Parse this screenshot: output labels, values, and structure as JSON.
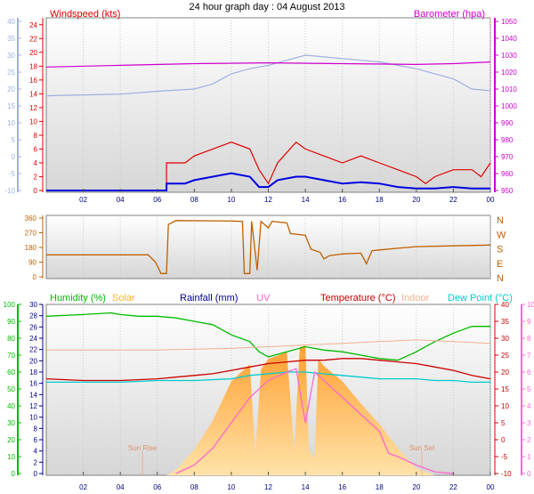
{
  "title": "24 hour graph day : 04 August 2013",
  "colors": {
    "wind_avg": "#0000e0",
    "wind_gust": "#e00000",
    "barometer": "#cc00cc",
    "temp_axis": "#a0b0e0",
    "wind_axis": "#e00000",
    "dir": "#c06000",
    "humidity": "#00bb00",
    "solar": "#ffb030",
    "rain": "#000090",
    "uv": "#ff66cc",
    "temperature": "#cc0000",
    "indoor": "#f0b090",
    "dewpoint": "#00cccc"
  },
  "chart_data": [
    {
      "type": "line",
      "panel": "wind",
      "x_ticks": [
        "02",
        "04",
        "06",
        "08",
        "10",
        "12",
        "14",
        "16",
        "18",
        "20",
        "22",
        "00"
      ],
      "left_outer_ticks": [
        "40",
        "35",
        "30",
        "25",
        "20",
        "15",
        "10",
        "5",
        "0",
        "-5",
        "-10"
      ],
      "left_inner_ticks": [
        "24",
        "22",
        "20",
        "18",
        "16",
        "14",
        "12",
        "10",
        "8",
        "6",
        "4",
        "2",
        "0"
      ],
      "right_ticks": [
        "1050",
        "1040",
        "1030",
        "1020",
        "1010",
        "1000",
        "990",
        "980",
        "970",
        "960",
        "950"
      ],
      "left_label": "Windspeed (kts)",
      "right_label": "Barometer (hpa)",
      "ylim_left_inner": [
        0,
        25
      ],
      "ylim_left_outer": [
        -10,
        40
      ],
      "ylim_right": [
        950,
        1050
      ],
      "series": [
        {
          "name": "Temperature (°C)",
          "color_key": "temp_axis",
          "points": [
            [
              0,
              18
            ],
            [
              4,
              18.5
            ],
            [
              6.5,
              19.5
            ],
            [
              8,
              20
            ],
            [
              9,
              21.5
            ],
            [
              10,
              24.5
            ],
            [
              11,
              26
            ],
            [
              12,
              27
            ],
            [
              13,
              28.5
            ],
            [
              14,
              30
            ],
            [
              15,
              29.5
            ],
            [
              16,
              29
            ],
            [
              17,
              28.5
            ],
            [
              18,
              28
            ],
            [
              19,
              27
            ],
            [
              20,
              26
            ],
            [
              21,
              24.5
            ],
            [
              22,
              23
            ],
            [
              23,
              20
            ],
            [
              24,
              19.5
            ]
          ]
        },
        {
          "name": "Barometer (hpa)",
          "color_key": "barometer",
          "points": [
            [
              0,
              1023
            ],
            [
              4,
              1024
            ],
            [
              8,
              1025
            ],
            [
              12,
              1025.5
            ],
            [
              16,
              1025
            ],
            [
              20,
              1024.5
            ],
            [
              22,
              1025
            ],
            [
              24,
              1026
            ]
          ]
        },
        {
          "name": "Windspeed gust",
          "color_key": "wind_gust",
          "points": [
            [
              0,
              0
            ],
            [
              6.5,
              0
            ],
            [
              6.5,
              4
            ],
            [
              7.5,
              4
            ],
            [
              8,
              5
            ],
            [
              9,
              6
            ],
            [
              10,
              7
            ],
            [
              11,
              6
            ],
            [
              11.5,
              3
            ],
            [
              12,
              1
            ],
            [
              12.5,
              4
            ],
            [
              13.5,
              7
            ],
            [
              14,
              6
            ],
            [
              15,
              5
            ],
            [
              16,
              4
            ],
            [
              17,
              5
            ],
            [
              18,
              4
            ],
            [
              19,
              3
            ],
            [
              20,
              2
            ],
            [
              20.5,
              1
            ],
            [
              21,
              2
            ],
            [
              22,
              3
            ],
            [
              23,
              3
            ],
            [
              23.5,
              2
            ],
            [
              24,
              4
            ]
          ]
        },
        {
          "name": "Windspeed avg",
          "color_key": "wind_avg",
          "points": [
            [
              0,
              0
            ],
            [
              6.5,
              0
            ],
            [
              6.5,
              1
            ],
            [
              7.5,
              1
            ],
            [
              8,
              1.5
            ],
            [
              9,
              2
            ],
            [
              10,
              2.5
            ],
            [
              11,
              2
            ],
            [
              11.5,
              0.5
            ],
            [
              12,
              0.5
            ],
            [
              12.5,
              1.5
            ],
            [
              13.5,
              2
            ],
            [
              14,
              2
            ],
            [
              15,
              1.5
            ],
            [
              16,
              1
            ],
            [
              17,
              1.2
            ],
            [
              18,
              1
            ],
            [
              19,
              0.5
            ],
            [
              20,
              0.3
            ],
            [
              21,
              0.3
            ],
            [
              22,
              0.5
            ],
            [
              23,
              0.3
            ],
            [
              24,
              0.3
            ]
          ]
        }
      ]
    },
    {
      "type": "line",
      "panel": "direction",
      "y_ticks": [
        "360",
        "270",
        "180",
        "90",
        "0"
      ],
      "compass": [
        "N",
        "W",
        "S",
        "E",
        "N"
      ],
      "ylim": [
        0,
        360
      ],
      "series": [
        {
          "name": "Wind direction",
          "color_key": "dir",
          "points": [
            [
              0,
              135
            ],
            [
              5.5,
              135
            ],
            [
              5.9,
              90
            ],
            [
              6.2,
              20
            ],
            [
              6.5,
              20
            ],
            [
              6.6,
              320
            ],
            [
              7,
              345
            ],
            [
              10,
              342
            ],
            [
              10.6,
              340
            ],
            [
              10.7,
              20
            ],
            [
              11,
              20
            ],
            [
              11.1,
              340
            ],
            [
              11.4,
              40
            ],
            [
              11.6,
              340
            ],
            [
              12,
              300
            ],
            [
              12.2,
              340
            ],
            [
              13,
              330
            ],
            [
              13.2,
              265
            ],
            [
              14,
              255
            ],
            [
              14.3,
              170
            ],
            [
              14.8,
              150
            ],
            [
              15,
              110
            ],
            [
              15.3,
              130
            ],
            [
              16,
              140
            ],
            [
              17,
              145
            ],
            [
              17.3,
              80
            ],
            [
              17.6,
              160
            ],
            [
              18,
              165
            ],
            [
              19,
              175
            ],
            [
              20,
              185
            ],
            [
              22,
              190
            ],
            [
              24,
              195
            ]
          ]
        }
      ]
    },
    {
      "type": "line",
      "panel": "weather",
      "x_ticks": [
        "02",
        "04",
        "06",
        "08",
        "10",
        "12",
        "14",
        "16",
        "18",
        "20",
        "22",
        "00"
      ],
      "humidity_ticks": [
        "100",
        "90",
        "80",
        "70",
        "60",
        "50",
        "40",
        "30",
        "20",
        "10",
        "0"
      ],
      "rain_ticks": [
        "30",
        "28",
        "26",
        "24",
        "22",
        "20",
        "18",
        "16",
        "14",
        "12",
        "10",
        "8",
        "6",
        "4",
        "2",
        "0"
      ],
      "temp_ticks": [
        "40",
        "35",
        "30",
        "25",
        "20",
        "15",
        "10",
        "5",
        "0",
        "-5",
        "-10"
      ],
      "uv_ticks": [
        "10",
        "9",
        "8",
        "7",
        "6",
        "5",
        "4",
        "3",
        "2",
        "1",
        "0"
      ],
      "labels": {
        "humidity": "Humidity (%)",
        "solar": "Solar",
        "rain": "Rainfall (mm)",
        "uv": "UV",
        "temperature": "Temperature (°C)",
        "indoor": "Indoor",
        "dewpoint": "Dew Point (°C)",
        "sunrise": "Sun Rise",
        "sunset": "Sun Set"
      },
      "sunrise_hour": 5.2,
      "sunset_hour": 20.3,
      "series": [
        {
          "name": "Solar",
          "color_key": "solar",
          "ylim": [
            0,
            1000
          ],
          "points": [
            [
              6.5,
              0
            ],
            [
              7,
              30
            ],
            [
              8,
              150
            ],
            [
              9,
              320
            ],
            [
              10,
              550
            ],
            [
              10.5,
              600
            ],
            [
              11,
              650
            ],
            [
              11.3,
              130
            ],
            [
              11.6,
              620
            ],
            [
              12,
              680
            ],
            [
              13,
              720
            ],
            [
              13.4,
              150
            ],
            [
              13.7,
              750
            ],
            [
              14,
              760
            ],
            [
              14.2,
              150
            ],
            [
              14.5,
              100
            ],
            [
              14.7,
              680
            ],
            [
              15,
              640
            ],
            [
              16,
              550
            ],
            [
              17,
              420
            ],
            [
              18,
              300
            ],
            [
              19,
              160
            ],
            [
              20,
              40
            ],
            [
              21,
              0
            ]
          ]
        },
        {
          "name": "Humidity (%)",
          "color_key": "humidity",
          "ylim": [
            0,
            100
          ],
          "points": [
            [
              0,
              93
            ],
            [
              2,
              94
            ],
            [
              3.5,
              95
            ],
            [
              4,
              94
            ],
            [
              5,
              93
            ],
            [
              6,
              93
            ],
            [
              7,
              92
            ],
            [
              8,
              90
            ],
            [
              9,
              88
            ],
            [
              10,
              82
            ],
            [
              11,
              78
            ],
            [
              11.5,
              72
            ],
            [
              12,
              69
            ],
            [
              13,
              72
            ],
            [
              14,
              75
            ],
            [
              15,
              73
            ],
            [
              16,
              72
            ],
            [
              17,
              70
            ],
            [
              18,
              68
            ],
            [
              19,
              67
            ],
            [
              20,
              72
            ],
            [
              21,
              78
            ],
            [
              22,
              83
            ],
            [
              23,
              87
            ],
            [
              24,
              87
            ]
          ]
        },
        {
          "name": "Indoor",
          "color_key": "indoor",
          "ylim": [
            -10,
            40
          ],
          "points": [
            [
              0,
              26.5
            ],
            [
              6,
              26.5
            ],
            [
              8,
              26.8
            ],
            [
              10,
              27
            ],
            [
              12,
              27.5
            ],
            [
              14,
              28
            ],
            [
              16,
              28.5
            ],
            [
              18,
              29
            ],
            [
              20,
              29.5
            ],
            [
              22,
              29
            ],
            [
              24,
              28.5
            ]
          ]
        },
        {
          "name": "Temperature (°C)",
          "color_key": "temperature",
          "ylim": [
            -10,
            40
          ],
          "points": [
            [
              0,
              18
            ],
            [
              2,
              17.5
            ],
            [
              4,
              17.5
            ],
            [
              6,
              18
            ],
            [
              7,
              18.5
            ],
            [
              8,
              19
            ],
            [
              9,
              19.5
            ],
            [
              10,
              20.5
            ],
            [
              11,
              21.5
            ],
            [
              12,
              22.5
            ],
            [
              13,
              23
            ],
            [
              14,
              23.5
            ],
            [
              15,
              23.5
            ],
            [
              16,
              24
            ],
            [
              17,
              24
            ],
            [
              18,
              23.5
            ],
            [
              19,
              23
            ],
            [
              20,
              22.5
            ],
            [
              21,
              21.5
            ],
            [
              22,
              20.5
            ],
            [
              23,
              19
            ],
            [
              24,
              18
            ]
          ]
        },
        {
          "name": "Dew Point (°C)",
          "color_key": "dewpoint",
          "ylim": [
            -10,
            40
          ],
          "points": [
            [
              0,
              17
            ],
            [
              2,
              17
            ],
            [
              4,
              17
            ],
            [
              6,
              17.5
            ],
            [
              8,
              17.5
            ],
            [
              10,
              18
            ],
            [
              11,
              19
            ],
            [
              12,
              19.5
            ],
            [
              13,
              20
            ],
            [
              14,
              20
            ],
            [
              15,
              19.5
            ],
            [
              16,
              19
            ],
            [
              17,
              18.5
            ],
            [
              18,
              18
            ],
            [
              19,
              18
            ],
            [
              20,
              18
            ],
            [
              21,
              17.5
            ],
            [
              22,
              17.5
            ],
            [
              23,
              17
            ],
            [
              24,
              17
            ]
          ]
        },
        {
          "name": "UV",
          "color_key": "uv",
          "ylim": [
            0,
            10
          ],
          "points": [
            [
              7,
              0
            ],
            [
              8,
              0.5
            ],
            [
              9,
              1.5
            ],
            [
              10,
              3
            ],
            [
              11,
              4.5
            ],
            [
              12,
              5.5
            ],
            [
              13,
              6
            ],
            [
              13.5,
              6.2
            ],
            [
              14,
              3
            ],
            [
              14.5,
              6
            ],
            [
              15,
              5.5
            ],
            [
              16,
              4.5
            ],
            [
              17,
              3.5
            ],
            [
              18,
              2.5
            ],
            [
              18.5,
              1.2
            ],
            [
              19,
              1
            ],
            [
              20,
              0.5
            ],
            [
              21,
              0.1
            ],
            [
              22,
              0
            ]
          ]
        }
      ]
    }
  ]
}
